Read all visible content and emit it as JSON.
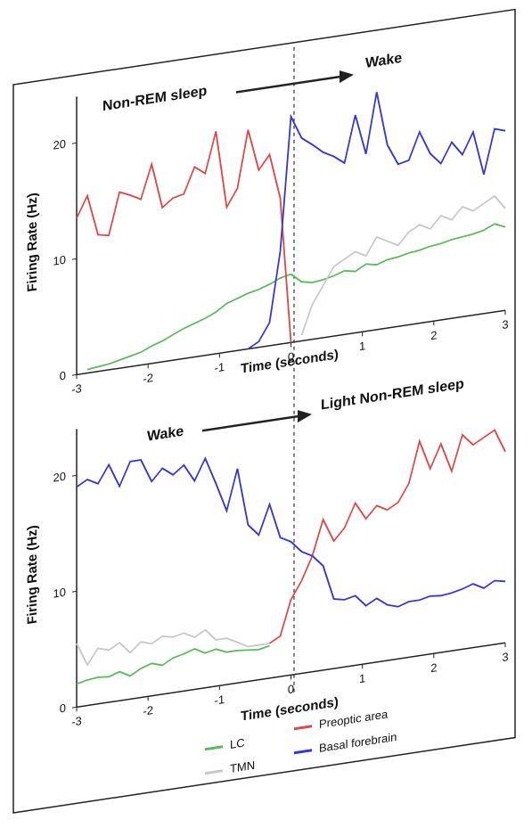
{
  "chart_data": [
    {
      "type": "line",
      "annotations": [
        "Non-REM sleep",
        "Wake"
      ],
      "y_label": "Firing Rate (Hz)",
      "x_label": "Time (seconds)",
      "xlim": [
        -3,
        3
      ],
      "ylim": [
        0,
        24
      ],
      "xticks": [
        -3,
        -2,
        -1,
        0,
        1,
        2,
        3
      ],
      "yticks": [
        0,
        10,
        20
      ],
      "x": [
        -3,
        -2.85,
        -2.7,
        -2.55,
        -2.4,
        -2.25,
        -2.1,
        -1.95,
        -1.8,
        -1.65,
        -1.5,
        -1.35,
        -1.2,
        -1.05,
        -0.9,
        -0.75,
        -0.6,
        -0.45,
        -0.3,
        -0.15,
        0,
        0.15,
        0.3,
        0.45,
        0.6,
        0.75,
        0.9,
        1.05,
        1.2,
        1.35,
        1.5,
        1.65,
        1.8,
        1.95,
        2.1,
        2.25,
        2.4,
        2.55,
        2.7,
        2.85,
        3
      ],
      "series": [
        {
          "color": "#5cb85c",
          "values": [
            null,
            0.3,
            0.4,
            0.5,
            0.7,
            0.9,
            1.1,
            1.5,
            1.8,
            2.2,
            2.6,
            2.9,
            3.2,
            3.6,
            4.2,
            4.5,
            4.8,
            5.0,
            5.3,
            5.7,
            5.9,
            5.1,
            4.9,
            5.0,
            5.2,
            5.5,
            5.3,
            5.8,
            5.6,
            5.9,
            6.0,
            6.2,
            6.3,
            6.5,
            6.6,
            6.8,
            6.9,
            7.0,
            7.2,
            7.6,
            7.2
          ]
        },
        {
          "color": "#c8c8c8",
          "values": [
            null,
            null,
            null,
            null,
            null,
            null,
            null,
            null,
            null,
            null,
            null,
            null,
            null,
            null,
            null,
            null,
            null,
            null,
            null,
            null,
            null,
            0.5,
            3,
            4.5,
            6,
            6.5,
            7,
            6.5,
            8,
            7.5,
            7,
            8,
            8.5,
            8,
            9,
            8.5,
            9.5,
            9,
            9.5,
            10,
            8.8
          ]
        },
        {
          "color": "#e04848",
          "values": [
            13.5,
            15.3,
            11.8,
            11.6,
            15.2,
            14.8,
            14.3,
            17.2,
            13.3,
            14,
            14.2,
            16.4,
            15.7,
            19.2,
            12.5,
            14,
            18.9,
            15.3,
            16.5,
            12.6,
            0,
            null,
            null,
            null,
            null,
            null,
            null,
            null,
            null,
            null,
            null,
            null,
            null,
            null,
            null,
            null,
            null,
            null,
            null,
            null,
            null
          ]
        },
        {
          "color": "#3535d8",
          "values": [
            null,
            null,
            null,
            null,
            null,
            null,
            null,
            null,
            null,
            null,
            null,
            null,
            null,
            null,
            null,
            null,
            0,
            0.5,
            2,
            8,
            19.5,
            17.5,
            16.8,
            16,
            15.5,
            14.8,
            18.8,
            15.3,
            20.5,
            15.8,
            14,
            14.2,
            16.5,
            14.5,
            13.5,
            15.2,
            14,
            15.8,
            12,
            15.8,
            15.5
          ]
        }
      ]
    },
    {
      "type": "line",
      "annotations": [
        "Wake",
        "Light Non-REM sleep"
      ],
      "y_label": "Firing Rate (Hz)",
      "x_label": "Time (seconds)",
      "xlim": [
        -3,
        3
      ],
      "ylim": [
        0,
        24
      ],
      "xticks": [
        -3,
        -2,
        -1,
        0,
        1,
        2,
        3
      ],
      "yticks": [
        0,
        10,
        20
      ],
      "x": [
        -3,
        -2.85,
        -2.7,
        -2.55,
        -2.4,
        -2.25,
        -2.1,
        -1.95,
        -1.8,
        -1.65,
        -1.5,
        -1.35,
        -1.2,
        -1.05,
        -0.9,
        -0.75,
        -0.6,
        -0.45,
        -0.3,
        -0.15,
        0,
        0.15,
        0.3,
        0.45,
        0.6,
        0.75,
        0.9,
        1.05,
        1.2,
        1.35,
        1.5,
        1.65,
        1.8,
        1.95,
        2.1,
        2.25,
        2.4,
        2.55,
        2.7,
        2.85,
        3
      ],
      "series": [
        {
          "name": "LC",
          "color": "#5cb85c",
          "values": [
            2,
            2.2,
            2.3,
            2.2,
            2.5,
            2,
            2.5,
            2.8,
            2.5,
            3,
            3.2,
            3.5,
            3,
            3.2,
            2.8,
            2.8,
            2.7,
            2.6,
            2.8,
            null,
            null,
            null,
            null,
            null,
            null,
            null,
            null,
            null,
            null,
            null,
            null,
            null,
            null,
            null,
            null,
            null,
            null,
            null,
            null,
            null,
            null
          ]
        },
        {
          "name": "TMN",
          "color": "#c8c8c8",
          "values": [
            5.5,
            3.5,
            4.8,
            4.5,
            5,
            4,
            4.8,
            4.5,
            5,
            4.8,
            5,
            4.5,
            5,
            4,
            4,
            3.5,
            3,
            3,
            3,
            null,
            null,
            null,
            null,
            null,
            null,
            null,
            null,
            null,
            null,
            null,
            null,
            null,
            null,
            null,
            null,
            null,
            null,
            null,
            null,
            null,
            null
          ]
        },
        {
          "name": "Preoptic area",
          "color": "#e04848",
          "values": [
            null,
            null,
            null,
            null,
            null,
            null,
            null,
            null,
            null,
            null,
            null,
            null,
            null,
            null,
            null,
            null,
            null,
            null,
            3,
            3.5,
            6.5,
            8,
            10,
            13,
            11,
            12,
            14,
            12.5,
            13.5,
            13,
            13.5,
            15,
            18.5,
            16,
            18,
            15.5,
            18.5,
            17.5,
            18,
            18.5,
            16.5
          ]
        },
        {
          "name": "Basal forebrain",
          "color": "#3535d8",
          "values": [
            19,
            19.5,
            19,
            20.5,
            18.5,
            20.5,
            20.5,
            18.5,
            19.5,
            18.8,
            19.5,
            18,
            19.8,
            17.5,
            15,
            18.5,
            13.5,
            12.5,
            15,
            12,
            11.5,
            10.5,
            10,
            9,
            6,
            5.8,
            6,
            5,
            5.5,
            4.8,
            4.5,
            4.8,
            4.8,
            5,
            4.9,
            5,
            5.2,
            5.5,
            5,
            5.5,
            5.3
          ]
        }
      ]
    }
  ]
}
